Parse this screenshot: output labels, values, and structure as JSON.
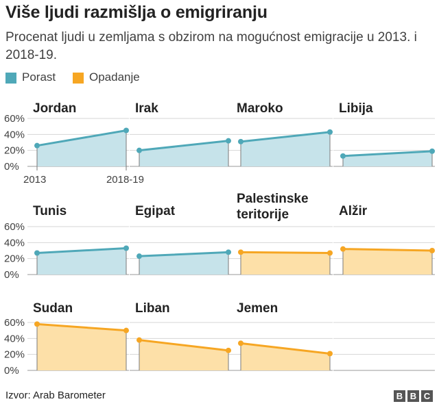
{
  "header": {
    "title": "Više ljudi razmišlja o emigriranju",
    "subtitle": "Procenat ljudi u zemljama s obzirom na mogućnost emigracije u 2013. i 2018-19."
  },
  "legend": {
    "increase_label": "Porast",
    "decrease_label": "Opadanje",
    "increase_color": "#4fa8b8",
    "decrease_color": "#f6a623",
    "increase_fill": "#c6e3ea",
    "decrease_fill": "#fde0a8"
  },
  "footer": {
    "source": "Izvor: Arab Barometer",
    "logo_letters": [
      "B",
      "B",
      "C"
    ]
  },
  "chart_data": {
    "type": "area",
    "x": [
      "2013",
      "2018-19"
    ],
    "xlabels_shown_on": "Jordan",
    "y_ticks": [
      "60%",
      "40%",
      "20%",
      "0%"
    ],
    "ylim": [
      0,
      60
    ],
    "unit": "%",
    "grid": true,
    "panels": [
      {
        "name": "Jordan",
        "values": [
          26,
          45
        ],
        "trend": "increase"
      },
      {
        "name": "Irak",
        "values": [
          20,
          32
        ],
        "trend": "increase"
      },
      {
        "name": "Maroko",
        "values": [
          31,
          43
        ],
        "trend": "increase"
      },
      {
        "name": "Libija",
        "values": [
          13,
          19
        ],
        "trend": "increase"
      },
      {
        "name": "Tunis",
        "values": [
          27,
          33
        ],
        "trend": "increase"
      },
      {
        "name": "Egipat",
        "values": [
          23,
          28
        ],
        "trend": "increase"
      },
      {
        "name": "Palestinske teritorije",
        "values": [
          28,
          27
        ],
        "trend": "decrease"
      },
      {
        "name": "Alžir",
        "values": [
          32,
          30
        ],
        "trend": "decrease"
      },
      {
        "name": "Sudan",
        "values": [
          58,
          50
        ],
        "trend": "decrease"
      },
      {
        "name": "Liban",
        "values": [
          38,
          25
        ],
        "trend": "decrease"
      },
      {
        "name": "Jemen",
        "values": [
          34,
          21
        ],
        "trend": "decrease"
      }
    ]
  }
}
